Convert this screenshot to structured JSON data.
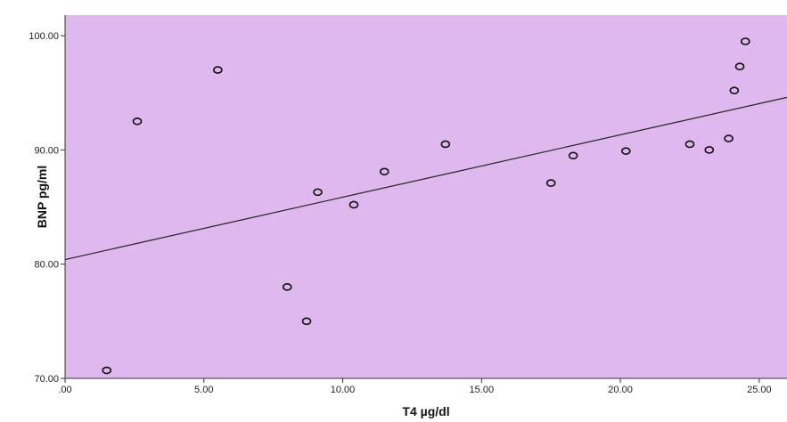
{
  "chart_data": {
    "type": "scatter",
    "title": "",
    "xlabel": "T4 µg/dl",
    "ylabel": "BNP pg/ml",
    "xlim": [
      0,
      26
    ],
    "ylim": [
      70,
      101.8
    ],
    "x_ticks": [
      {
        "value": 0,
        "label": ".00"
      },
      {
        "value": 5,
        "label": "5.00"
      },
      {
        "value": 10,
        "label": "10.00"
      },
      {
        "value": 15,
        "label": "15.00"
      },
      {
        "value": 20,
        "label": "20.00"
      },
      {
        "value": 25,
        "label": "25.00"
      }
    ],
    "y_ticks": [
      {
        "value": 70,
        "label": "70.00"
      },
      {
        "value": 80,
        "label": "80.00"
      },
      {
        "value": 90,
        "label": "90.00"
      },
      {
        "value": 100,
        "label": "100.00"
      }
    ],
    "grid": false,
    "legend": "none",
    "points": [
      {
        "x": 1.5,
        "y": 70.7
      },
      {
        "x": 2.6,
        "y": 92.5
      },
      {
        "x": 5.5,
        "y": 97.0
      },
      {
        "x": 8.0,
        "y": 78.0
      },
      {
        "x": 8.7,
        "y": 75.0
      },
      {
        "x": 9.1,
        "y": 86.3
      },
      {
        "x": 10.4,
        "y": 85.2
      },
      {
        "x": 11.5,
        "y": 88.1
      },
      {
        "x": 13.7,
        "y": 90.5
      },
      {
        "x": 17.5,
        "y": 87.1
      },
      {
        "x": 18.3,
        "y": 89.5
      },
      {
        "x": 20.2,
        "y": 89.9
      },
      {
        "x": 22.5,
        "y": 90.5
      },
      {
        "x": 23.2,
        "y": 90.0
      },
      {
        "x": 23.9,
        "y": 91.0
      },
      {
        "x": 24.1,
        "y": 95.2
      },
      {
        "x": 24.3,
        "y": 97.3
      },
      {
        "x": 24.5,
        "y": 99.5
      }
    ],
    "fit_line": {
      "x": [
        0,
        26
      ],
      "y": [
        80.4,
        94.6
      ]
    },
    "colors": {
      "plot_background": "#dfb8ee",
      "marker": "#111111",
      "fit_line": "#222222"
    }
  }
}
